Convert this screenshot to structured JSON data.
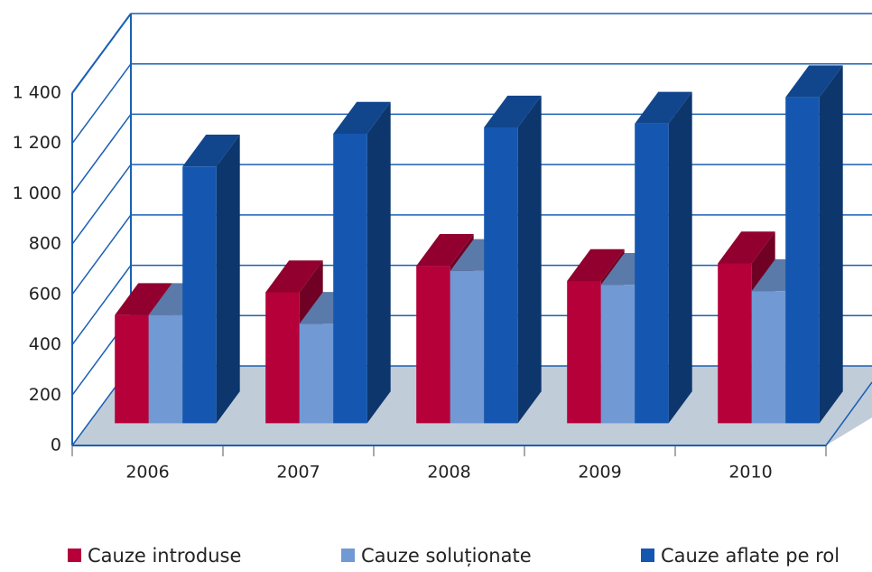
{
  "chart_data": {
    "type": "bar3d",
    "categories": [
      "2006",
      "2007",
      "2008",
      "2009",
      "2010"
    ],
    "series": [
      {
        "name": "Cauze introduse",
        "color": "#b5003a",
        "values": [
          430,
          520,
          625,
          565,
          635
        ]
      },
      {
        "name": "Cauze soluționate",
        "color": "#7199d4",
        "values": [
          430,
          395,
          605,
          550,
          525
        ]
      },
      {
        "name": "Cauze aflate pe rol",
        "color": "#1557b0",
        "values": [
          1020,
          1150,
          1175,
          1190,
          1295
        ]
      }
    ],
    "ylim": [
      0,
      1400
    ],
    "yticks": [
      0,
      200,
      400,
      600,
      800,
      {
        "value": 1000,
        "label": "1 000"
      },
      {
        "value": 1200,
        "label": "1 200"
      },
      {
        "value": 1400,
        "label": "1 400"
      }
    ],
    "grid": true
  }
}
